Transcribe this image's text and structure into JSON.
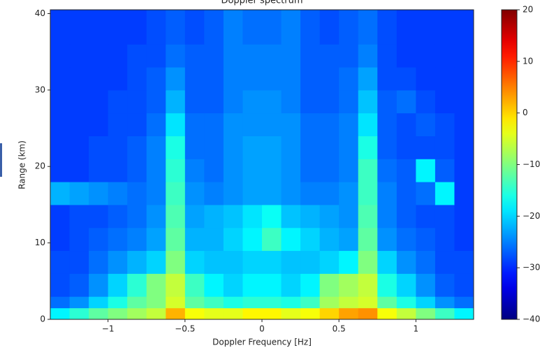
{
  "chart_data": {
    "type": "heatmap",
    "title": "Doppler spectrum",
    "x_label": "Doppler Frequency [Hz]",
    "y_label": "Range (km)",
    "colormap": "jet",
    "clim": [
      -40,
      20
    ],
    "xlim": [
      -1.375,
      1.375
    ],
    "ylim": [
      0,
      40.5
    ],
    "xticks": [
      {
        "value": -1,
        "label": "−1"
      },
      {
        "value": -0.5,
        "label": "−0.5"
      },
      0,
      0.5,
      1
    ],
    "yticks": [
      0,
      10,
      20,
      30,
      40
    ],
    "cticks": [
      {
        "value": -40,
        "label": "−40"
      },
      {
        "value": -30,
        "label": "−30"
      },
      {
        "value": -20,
        "label": "−20"
      },
      {
        "value": -10,
        "label": "−10"
      },
      0,
      10,
      20
    ],
    "xbins": [
      -1.375,
      -1.25,
      -1.125,
      -1,
      -0.875,
      -0.75,
      -0.625,
      -0.5,
      -0.375,
      -0.25,
      -0.125,
      0,
      0.125,
      0.25,
      0.375,
      0.5,
      0.625,
      0.75,
      0.875,
      1,
      1.125,
      1.25,
      1.375
    ],
    "ybins": [
      0,
      1.5,
      3,
      6,
      9,
      12,
      15,
      18,
      21,
      24,
      27,
      30,
      33,
      36,
      40.5
    ],
    "values": [
      [
        -18,
        -15,
        -12,
        -10,
        -8,
        -6,
        2,
        -3,
        -4,
        -4,
        -2,
        -2,
        -4,
        -3,
        0,
        3,
        4,
        -3,
        -6,
        -10,
        -14,
        -18
      ],
      [
        -26,
        -24,
        -20,
        -16,
        -12,
        -10,
        -5,
        -12,
        -14,
        -16,
        -15,
        -15,
        -16,
        -14,
        -8,
        -6,
        -5,
        -12,
        -16,
        -20,
        -24,
        -26
      ],
      [
        -28,
        -27,
        -24,
        -20,
        -15,
        -10,
        -6,
        -14,
        -18,
        -20,
        -18,
        -18,
        -20,
        -18,
        -10,
        -8,
        -6,
        -16,
        -20,
        -24,
        -27,
        -28
      ],
      [
        -28,
        -28,
        -26,
        -24,
        -22,
        -20,
        -10,
        -20,
        -21,
        -21,
        -20,
        -20,
        -21,
        -21,
        -20,
        -18,
        -10,
        -20,
        -24,
        -26,
        -28,
        -28
      ],
      [
        -29,
        -28,
        -27,
        -26,
        -25,
        -23,
        -12,
        -22,
        -22,
        -20,
        -18,
        -14,
        -18,
        -20,
        -22,
        -23,
        -12,
        -24,
        -26,
        -27,
        -28,
        -29
      ],
      [
        -29,
        -28,
        -28,
        -27,
        -26,
        -24,
        -13,
        -23,
        -22,
        -21,
        -19,
        -17,
        -21,
        -22,
        -23,
        -24,
        -13,
        -25,
        -27,
        -28,
        -28,
        -29
      ],
      [
        -22,
        -23,
        -24,
        -25,
        -26,
        -25,
        -14,
        -24,
        -25,
        -24,
        -23,
        -23,
        -24,
        -25,
        -25,
        -24,
        -14,
        -25,
        -27,
        -26,
        -18,
        -29
      ],
      [
        -29,
        -29,
        -28,
        -28,
        -27,
        -25,
        -15,
        -25,
        -26,
        -24,
        -23,
        -23,
        -24,
        -26,
        -26,
        -25,
        -14,
        -26,
        -27,
        -18,
        -27,
        -29
      ],
      [
        -29,
        -29,
        -28,
        -28,
        -27,
        -25,
        -16,
        -26,
        -26,
        -24,
        -23,
        -23,
        -24,
        -26,
        -26,
        -25,
        -16,
        -27,
        -28,
        -28,
        -28,
        -29
      ],
      [
        -29,
        -29,
        -29,
        -28,
        -28,
        -26,
        -19,
        -26,
        -26,
        -24,
        -24,
        -24,
        -24,
        -26,
        -26,
        -25,
        -19,
        -27,
        -28,
        -27,
        -28,
        -29
      ],
      [
        -29,
        -29,
        -29,
        -28,
        -28,
        -27,
        -22,
        -27,
        -27,
        -25,
        -24,
        -24,
        -25,
        -27,
        -27,
        -26,
        -21,
        -27,
        -26,
        -28,
        -29,
        -29
      ],
      [
        -29,
        -29,
        -29,
        -29,
        -28,
        -27,
        -24,
        -27,
        -27,
        -25,
        -25,
        -25,
        -25,
        -27,
        -27,
        -26,
        -23,
        -28,
        -28,
        -29,
        -29,
        -29
      ],
      [
        -29,
        -29,
        -29,
        -29,
        -28,
        -28,
        -26,
        -27,
        -27,
        -25,
        -25,
        -25,
        -25,
        -27,
        -27,
        -27,
        -25,
        -28,
        -29,
        -29,
        -29,
        -29
      ],
      [
        -29,
        -29,
        -29,
        -29,
        -29,
        -28,
        -27,
        -28,
        -27,
        -25,
        -26,
        -26,
        -25,
        -27,
        -28,
        -27,
        -26,
        -28,
        -29,
        -29,
        -29,
        -29
      ]
    ]
  }
}
